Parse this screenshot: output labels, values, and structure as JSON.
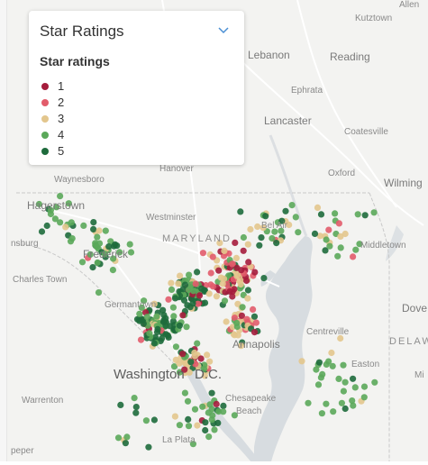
{
  "legend": {
    "title": "Star Ratings",
    "subtitle": "Star ratings",
    "chevron_icon": "chevron-down-icon",
    "items": [
      {
        "label": "1",
        "color": "#a51c3c"
      },
      {
        "label": "2",
        "color": "#e25c6b"
      },
      {
        "label": "3",
        "color": "#e3c68d"
      },
      {
        "label": "4",
        "color": "#5ba85a"
      },
      {
        "label": "5",
        "color": "#1e6b3c"
      }
    ]
  },
  "map_labels": {
    "allentown": "Allen",
    "kutztown": "Kutztown",
    "lebanon": "Lebanon",
    "reading": "Reading",
    "ephrata": "Ephrata",
    "lancaster": "Lancaster",
    "coatesville": "Coatesville",
    "oxford": "Oxford",
    "wilmington": "Wilming",
    "waynesboro": "Waynesboro",
    "hanover": "Hanover",
    "hagerstown": "Hagerstown",
    "westminster": "Westminster",
    "maryland": "MARYLAND",
    "bel_air": "Bel Air",
    "middletown": "Middletown",
    "martinsburg": "nsburg",
    "frederick": "Frederick",
    "charles_town": "Charles Town",
    "germantown": "Germantown",
    "dover": "Dove",
    "delaware": "DELAW",
    "centreville": "Centreville",
    "annapolis": "Annapolis",
    "washington": "Washington",
    "dc": "D.C.",
    "easton": "Easton",
    "warrenton": "Warrenton",
    "chesapeake_beach": "Chesapeake",
    "beach": "Beach",
    "la_plata": "La Plata",
    "culpeper": "peper",
    "milford": "Mi"
  }
}
